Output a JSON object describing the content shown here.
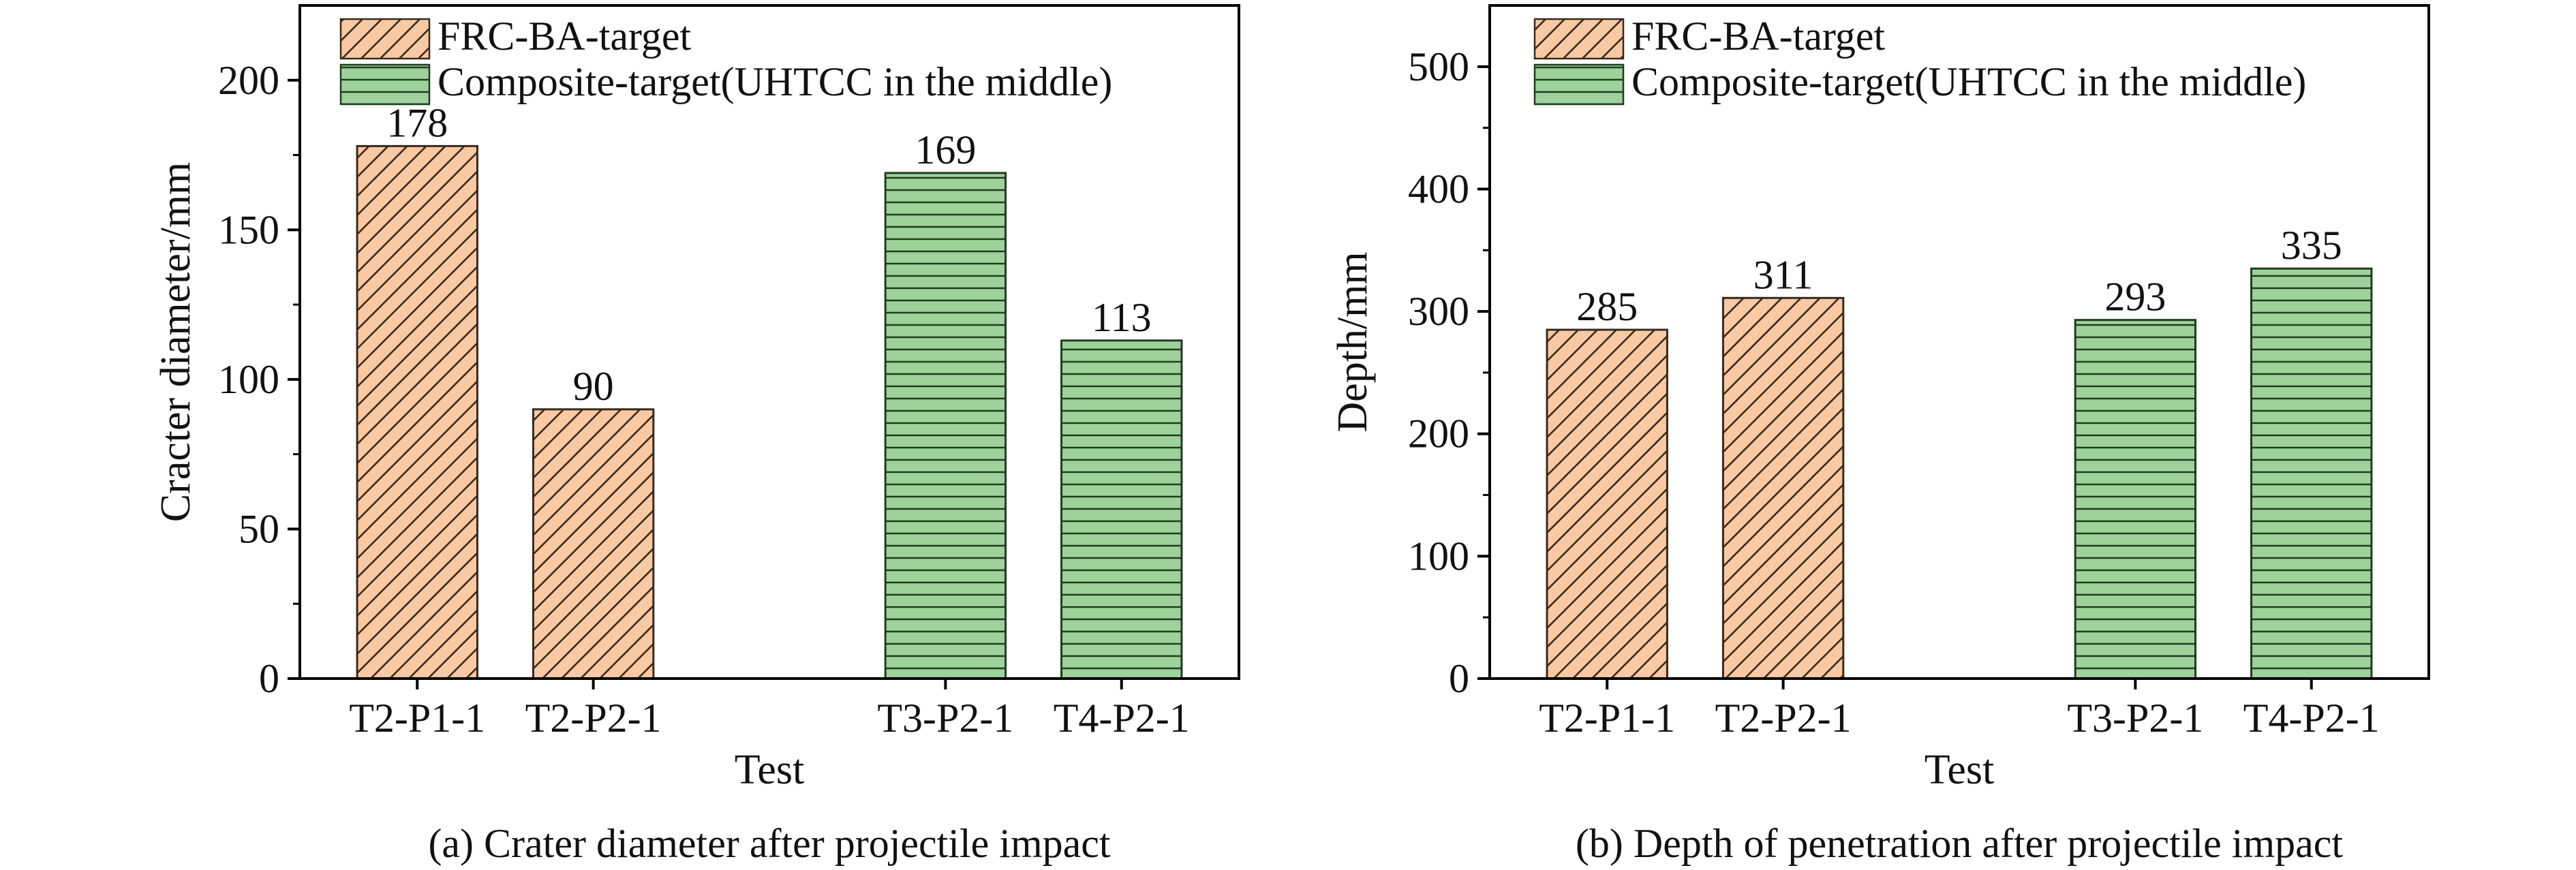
{
  "colors": {
    "frc_fill": "#f9c9a4",
    "frc_stroke": "#3a2a1a",
    "composite_fill": "#9ed29b",
    "composite_stroke": "#1f3d1f",
    "axis": "#000000"
  },
  "legend": {
    "frc": "FRC-BA-target",
    "composite": "Composite-target(UHTCC in the middle)"
  },
  "chart_data": [
    {
      "type": "bar",
      "caption": "(a) Crater diameter after projectile impact",
      "xlabel": "Test",
      "ylabel": "Cracter diameter/mm",
      "ylim": [
        0,
        225
      ],
      "yticks": [
        0,
        50,
        100,
        150,
        200
      ],
      "categories": [
        "T2-P1-1",
        "T2-P2-1",
        "T3-P2-1",
        "T4-P2-1"
      ],
      "values": [
        178,
        90,
        169,
        113
      ],
      "groups": [
        "frc",
        "frc",
        "composite",
        "composite"
      ],
      "data_labels": [
        "178",
        "90",
        "169",
        "113"
      ],
      "legend_position": "top-left",
      "grid": false
    },
    {
      "type": "bar",
      "caption": "(b) Depth of penetration after projectile impact",
      "xlabel": "Test",
      "ylabel": "Depth/mm",
      "ylim": [
        0,
        550
      ],
      "yticks": [
        0,
        100,
        200,
        300,
        400,
        500
      ],
      "categories": [
        "T2-P1-1",
        "T2-P2-1",
        "T3-P2-1",
        "T4-P2-1"
      ],
      "values": [
        285,
        311,
        293,
        335
      ],
      "groups": [
        "frc",
        "frc",
        "composite",
        "composite"
      ],
      "data_labels": [
        "285",
        "311",
        "293",
        "335"
      ],
      "legend_position": "top-left",
      "grid": false
    }
  ]
}
